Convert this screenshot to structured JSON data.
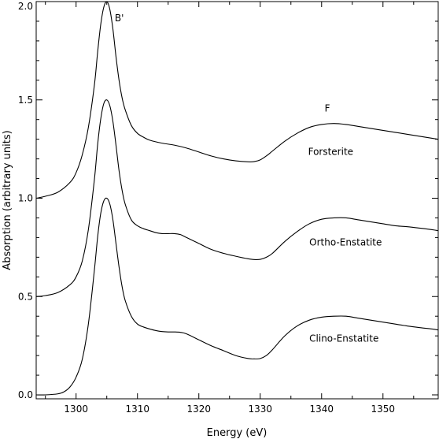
{
  "chart_data": {
    "type": "line",
    "title": "",
    "xlabel": "Energy (eV)",
    "ylabel": "Absorption (arbitrary units)",
    "xlim": [
      1293.5,
      1359
    ],
    "ylim": [
      -0.02,
      2.0
    ],
    "xticks": [
      1300,
      1310,
      1320,
      1330,
      1340,
      1350
    ],
    "xtick_labels": [
      "1300",
      "1310",
      "1320",
      "1330",
      "1340",
      "1350"
    ],
    "yticks": [
      0.0,
      0.5,
      1.0,
      1.5,
      2.0
    ],
    "ytick_labels": [
      "0.0",
      "0.5",
      "1.0",
      "1.5",
      "2.0"
    ],
    "grid": false,
    "legend": "none",
    "annotations": [
      {
        "text": "B'",
        "x": 1306.3,
        "y": 1.9
      },
      {
        "text": "F",
        "x": 1340.5,
        "y": 1.44
      }
    ],
    "series": [
      {
        "name": "Forsterite",
        "label_at": {
          "x": 1337.8,
          "y": 1.22
        },
        "x": [
          1293.5,
          1295,
          1297,
          1299,
          1300,
          1301,
          1302,
          1303,
          1303.5,
          1304,
          1304.5,
          1305,
          1305.5,
          1306,
          1306.5,
          1307,
          1307.5,
          1308,
          1309,
          1310,
          1311,
          1312,
          1314,
          1316,
          1318,
          1320,
          1322,
          1324,
          1326,
          1328,
          1329,
          1330,
          1331,
          1332,
          1334,
          1336,
          1338,
          1340,
          1342,
          1344,
          1346,
          1348,
          1350,
          1352,
          1354,
          1356,
          1358,
          1359
        ],
        "y": [
          1.0,
          1.01,
          1.03,
          1.08,
          1.13,
          1.22,
          1.36,
          1.58,
          1.74,
          1.88,
          1.97,
          2.0,
          1.96,
          1.86,
          1.72,
          1.6,
          1.51,
          1.45,
          1.37,
          1.33,
          1.31,
          1.295,
          1.28,
          1.27,
          1.255,
          1.235,
          1.215,
          1.2,
          1.19,
          1.185,
          1.186,
          1.195,
          1.215,
          1.24,
          1.29,
          1.33,
          1.36,
          1.375,
          1.38,
          1.375,
          1.365,
          1.355,
          1.345,
          1.335,
          1.325,
          1.315,
          1.305,
          1.3
        ]
      },
      {
        "name": "Ortho-Enstatite",
        "label_at": {
          "x": 1338,
          "y": 0.76
        },
        "x": [
          1293.5,
          1295,
          1297,
          1299,
          1300,
          1301,
          1302,
          1303,
          1303.5,
          1304,
          1304.5,
          1305,
          1305.5,
          1306,
          1306.5,
          1307,
          1307.5,
          1308,
          1309,
          1310,
          1311,
          1312,
          1313,
          1314,
          1315,
          1316,
          1317,
          1318,
          1320,
          1322,
          1324,
          1326,
          1328,
          1329,
          1330,
          1331,
          1332,
          1334,
          1336,
          1338,
          1340,
          1342,
          1344,
          1346,
          1348,
          1350,
          1352,
          1354,
          1356,
          1358,
          1359
        ],
        "y": [
          0.5,
          0.505,
          0.52,
          0.56,
          0.6,
          0.68,
          0.84,
          1.1,
          1.27,
          1.4,
          1.48,
          1.5,
          1.47,
          1.39,
          1.27,
          1.14,
          1.04,
          0.97,
          0.89,
          0.86,
          0.845,
          0.835,
          0.825,
          0.82,
          0.82,
          0.82,
          0.815,
          0.8,
          0.77,
          0.74,
          0.72,
          0.705,
          0.692,
          0.688,
          0.689,
          0.7,
          0.72,
          0.78,
          0.83,
          0.87,
          0.893,
          0.9,
          0.9,
          0.89,
          0.88,
          0.87,
          0.86,
          0.855,
          0.848,
          0.84,
          0.835
        ]
      },
      {
        "name": "Clino-Enstatite",
        "label_at": {
          "x": 1338,
          "y": 0.27
        },
        "x": [
          1293.5,
          1295,
          1297,
          1298,
          1299,
          1300,
          1301,
          1302,
          1303,
          1303.5,
          1304,
          1304.5,
          1305,
          1305.5,
          1306,
          1306.5,
          1307,
          1307.5,
          1308,
          1309,
          1310,
          1311,
          1312,
          1313,
          1314,
          1315,
          1316,
          1317,
          1318,
          1320,
          1322,
          1324,
          1326,
          1328,
          1329,
          1330,
          1331,
          1332,
          1334,
          1336,
          1338,
          1340,
          1342,
          1344,
          1346,
          1348,
          1350,
          1352,
          1354,
          1356,
          1358,
          1359
        ],
        "y": [
          0.0,
          0.0,
          0.005,
          0.015,
          0.04,
          0.09,
          0.18,
          0.36,
          0.64,
          0.8,
          0.92,
          0.985,
          1.0,
          0.97,
          0.89,
          0.77,
          0.65,
          0.55,
          0.48,
          0.4,
          0.36,
          0.345,
          0.335,
          0.327,
          0.322,
          0.32,
          0.32,
          0.318,
          0.31,
          0.28,
          0.25,
          0.225,
          0.2,
          0.185,
          0.183,
          0.185,
          0.2,
          0.23,
          0.3,
          0.35,
          0.38,
          0.395,
          0.4,
          0.4,
          0.39,
          0.38,
          0.37,
          0.36,
          0.35,
          0.342,
          0.335,
          0.33
        ]
      }
    ]
  }
}
